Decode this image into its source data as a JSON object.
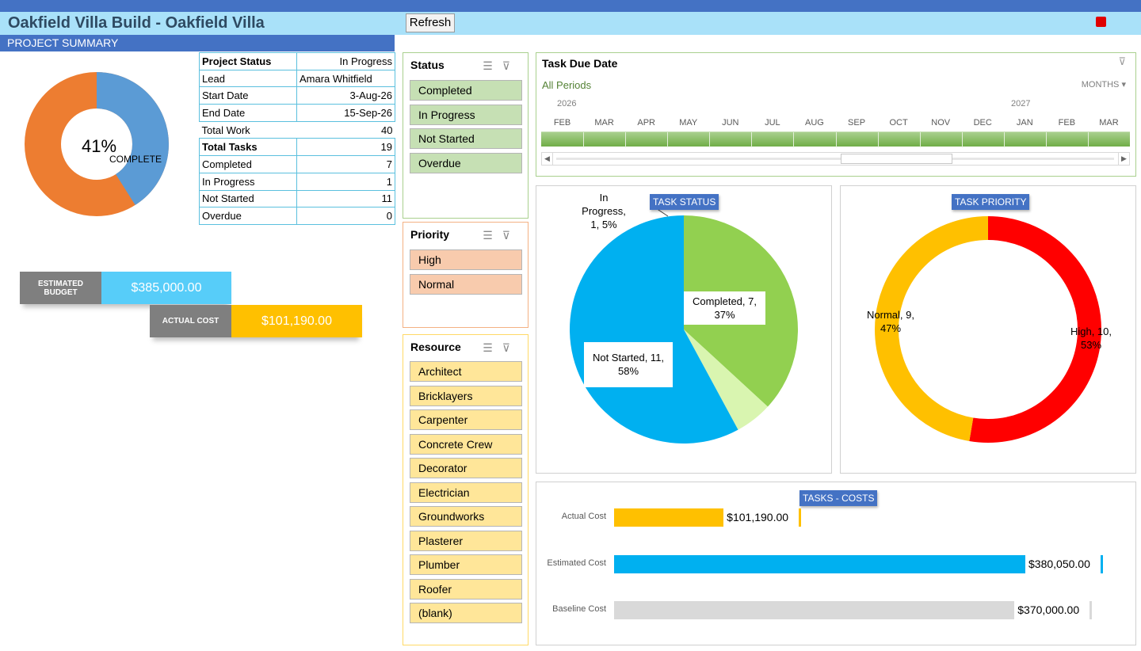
{
  "header": {
    "title": "Oakfield Villa Build - Oakfield Villa",
    "refresh_label": "Refresh",
    "section_label": "PROJECT SUMMARY"
  },
  "progress": {
    "percent_text": "41%",
    "label": "COMPLETE",
    "value": 0.41,
    "colors": {
      "complete": "#5b9bd5",
      "remaining": "#ed7d31"
    }
  },
  "summary": {
    "project_status": {
      "label": "Project Status",
      "value": "In Progress"
    },
    "lead": {
      "label": "Lead",
      "value": "Amara Whitfield"
    },
    "start_date": {
      "label": "Start Date",
      "value": "3-Aug-26"
    },
    "end_date": {
      "label": "End Date",
      "value": "15-Sep-26"
    },
    "total_work": {
      "label": "Total Work",
      "value": "40"
    },
    "total_tasks": {
      "label": "Total Tasks",
      "value": "19"
    },
    "completed": {
      "label": "Completed",
      "value": "7"
    },
    "in_progress": {
      "label": "In Progress",
      "value": "1"
    },
    "not_started": {
      "label": "Not Started",
      "value": "11"
    },
    "overdue": {
      "label": "Overdue",
      "value": "0"
    }
  },
  "budget": {
    "estimated_label": "ESTIMATED BUDGET",
    "estimated_value": "$385,000.00",
    "actual_label": "ACTUAL COST",
    "actual_value": "$101,190.00"
  },
  "slicers": {
    "status": {
      "title": "Status",
      "items": [
        "Completed",
        "In Progress",
        "Not Started",
        "Overdue"
      ],
      "color": "#c6e0b4"
    },
    "priority": {
      "title": "Priority",
      "items": [
        "High",
        "Normal"
      ],
      "color": "#f8cbad"
    },
    "resource": {
      "title": "Resource",
      "items": [
        "Architect",
        "Bricklayers",
        "Carpenter",
        "Concrete Crew",
        "Decorator",
        "Electrician",
        "Groundworks",
        "Plasterer",
        "Plumber",
        "Roofer",
        "(blank)"
      ],
      "color": "#ffe699"
    }
  },
  "timeline": {
    "title": "Task Due Date",
    "period_label": "All Periods",
    "unit_label": "MONTHS",
    "years": [
      "2026",
      "2027"
    ],
    "months": [
      "FEB",
      "MAR",
      "APR",
      "MAY",
      "JUN",
      "JUL",
      "AUG",
      "SEP",
      "OCT",
      "NOV",
      "DEC",
      "JAN",
      "FEB",
      "MAR"
    ]
  },
  "chart_data": [
    {
      "type": "pie",
      "title": "TASK STATUS",
      "categories": [
        "Completed",
        "In Progress",
        "Not Started"
      ],
      "values": [
        7,
        1,
        11
      ],
      "percent_labels": [
        "37%",
        "5%",
        "58%"
      ],
      "colors": [
        "#92d050",
        "#d9f5b0",
        "#00b0f0"
      ],
      "data_labels": [
        {
          "l1": "Completed, 7,",
          "l2": "37%"
        },
        {
          "l1": "In",
          "l2": "Progress,",
          "l3": "1, 5%"
        },
        {
          "l1": "Not Started, 11,",
          "l2": "58%"
        }
      ]
    },
    {
      "type": "pie",
      "title": "TASK PRIORITY",
      "categories": [
        "High",
        "Normal"
      ],
      "values": [
        10,
        9
      ],
      "percent_labels": [
        "53%",
        "47%"
      ],
      "colors": [
        "#ff0000",
        "#ffc000"
      ],
      "data_labels": [
        {
          "l1": "High, 10,",
          "l2": "53%"
        },
        {
          "l1": "Normal, 9,",
          "l2": "47%"
        }
      ]
    },
    {
      "type": "bar",
      "title": "TASKS - COSTS",
      "categories": [
        "Actual Cost",
        "Estimated Cost",
        "Baseline Cost"
      ],
      "values": [
        101190,
        380050,
        370000
      ],
      "value_labels": [
        "$101,190.00",
        "$380,050.00",
        "$370,000.00"
      ],
      "colors": [
        "#ffc000",
        "#00b0f0",
        "#d9d9d9"
      ]
    }
  ]
}
